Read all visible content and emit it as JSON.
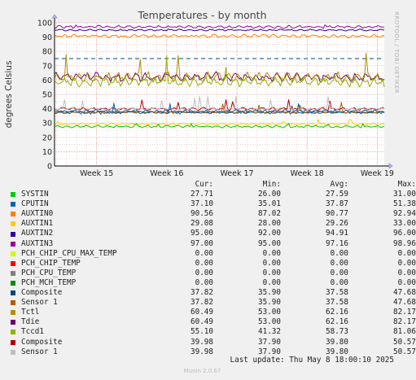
{
  "chart_data": {
    "type": "line",
    "title": "Temperatures - by month",
    "ylabel": "degrees Celsius",
    "side_label": "RRDTOOL / TOBI OETIKER",
    "ylim": [
      0,
      100
    ],
    "yticks": [
      0,
      10,
      20,
      30,
      40,
      50,
      60,
      70,
      80,
      90,
      100
    ],
    "xlim_weeks": [
      14.4,
      19.1
    ],
    "xticks": [
      {
        "label": "Week 15",
        "pos": 15
      },
      {
        "label": "Week 16",
        "pos": 16
      },
      {
        "label": "Week 17",
        "pos": 17
      },
      {
        "label": "Week 18",
        "pos": 18
      },
      {
        "label": "Week 19",
        "pos": 19
      }
    ],
    "grid": true,
    "columns": [
      "Cur:",
      "Min:",
      "Avg:",
      "Max:"
    ],
    "series": [
      {
        "name": "SYSTIN",
        "color": "#00cc00",
        "cur": "27.71",
        "min": "26.00",
        "avg": "27.59",
        "max": "31.00"
      },
      {
        "name": "CPUTIN",
        "color": "#0066b3",
        "cur": "37.10",
        "min": "35.01",
        "avg": "37.87",
        "max": "51.38"
      },
      {
        "name": "AUXTIN0",
        "color": "#ff8000",
        "cur": "90.56",
        "min": "87.02",
        "avg": "90.77",
        "max": "92.94"
      },
      {
        "name": "AUXTIN1",
        "color": "#ffcc00",
        "cur": "29.08",
        "min": "28.00",
        "avg": "29.26",
        "max": "33.00"
      },
      {
        "name": "AUXTIN2",
        "color": "#330099",
        "cur": "95.00",
        "min": "92.00",
        "avg": "94.91",
        "max": "96.00"
      },
      {
        "name": "AUXTIN3",
        "color": "#990099",
        "cur": "97.00",
        "min": "95.00",
        "avg": "97.16",
        "max": "98.96"
      },
      {
        "name": "PCH_CHIP_CPU_MAX_TEMP",
        "color": "#ccff00",
        "cur": "0.00",
        "min": "0.00",
        "avg": "0.00",
        "max": "0.00"
      },
      {
        "name": "PCH_CHIP_TEMP",
        "color": "#ff0000",
        "cur": "0.00",
        "min": "0.00",
        "avg": "0.00",
        "max": "0.00"
      },
      {
        "name": "PCH_CPU_TEMP",
        "color": "#808080",
        "cur": "0.00",
        "min": "0.00",
        "avg": "0.00",
        "max": "0.00"
      },
      {
        "name": "PCH_MCH_TEMP",
        "color": "#008f00",
        "cur": "0.00",
        "min": "0.00",
        "avg": "0.00",
        "max": "0.00"
      },
      {
        "name": "Composite",
        "color": "#00487d",
        "cur": "37.82",
        "min": "35.90",
        "avg": "37.58",
        "max": "47.68"
      },
      {
        "name": "Sensor 1",
        "color": "#b35a00",
        "cur": "37.82",
        "min": "35.90",
        "avg": "37.58",
        "max": "47.68"
      },
      {
        "name": "Tctl",
        "color": "#b38f00",
        "cur": "60.49",
        "min": "53.00",
        "avg": "62.16",
        "max": "82.17"
      },
      {
        "name": "Tdie",
        "color": "#6b006b",
        "cur": "60.49",
        "min": "53.00",
        "avg": "62.16",
        "max": "82.17"
      },
      {
        "name": "Tccd1",
        "color": "#8fb300",
        "cur": "55.10",
        "min": "41.32",
        "avg": "58.73",
        "max": "81.06"
      },
      {
        "name": "Composite",
        "color": "#b30000",
        "cur": "39.98",
        "min": "37.90",
        "avg": "39.80",
        "max": "50.57"
      },
      {
        "name": "Sensor 1",
        "color": "#bebebe",
        "cur": "39.98",
        "min": "37.90",
        "avg": "39.80",
        "max": "50.57"
      }
    ],
    "warning_lines": [
      {
        "value": 75,
        "color": "#00487d",
        "style": "dashed"
      }
    ]
  },
  "last_update": "Last update: Thu May  8 18:00:10 2025",
  "footer": "Munin 2.0.67"
}
